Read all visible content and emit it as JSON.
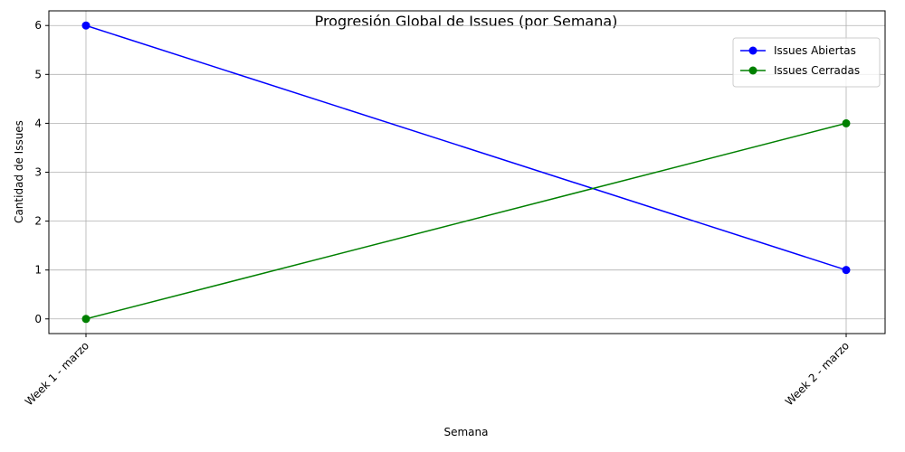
{
  "chart_data": {
    "type": "line",
    "title": "Progresión Global de Issues (por Semana)",
    "xlabel": "Semana",
    "ylabel": "Cantidad de Issues",
    "categories": [
      "Week 1 - marzo",
      "Week 2 - marzo"
    ],
    "yticks": [
      "0",
      "1",
      "2",
      "3",
      "4",
      "5",
      "6"
    ],
    "ylim": [
      -0.3,
      6.3
    ],
    "grid": true,
    "legend_position": "top-right",
    "series": [
      {
        "name": "Issues Abiertas",
        "values": [
          6,
          1
        ],
        "color": "#0000ff"
      },
      {
        "name": "Issues Cerradas",
        "values": [
          0,
          4
        ],
        "color": "#008000"
      }
    ]
  }
}
